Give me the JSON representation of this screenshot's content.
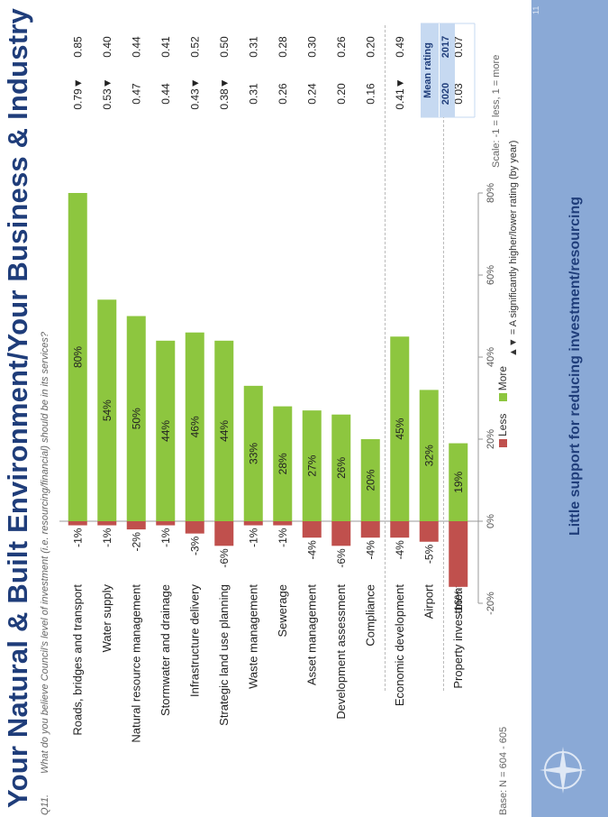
{
  "title": "Your Natural & Built Environment/Your Business & Industry",
  "question_num": "Q11.",
  "question": "What do you believe Council's level of investment (i.e. resourcing/financial) should be in its services?",
  "base": "Base: N = 604 - 605",
  "scale_note": "Scale: -1 = less, 1 = more",
  "sig_note": "▲▼ = A significantly higher/lower rating (by year)",
  "footer_message": "Little support for reducing investment/resourcing",
  "page_number": "11",
  "mean_rating": {
    "header": "Mean rating",
    "year_a": "2020",
    "year_b": "2017",
    "rows": [
      {
        "v2020": "0.79",
        "v2017": "0.85",
        "sig": "▼"
      },
      {
        "v2020": "0.53",
        "v2017": "0.40",
        "sig": "▼"
      },
      {
        "v2020": "0.47",
        "v2017": "0.44",
        "sig": ""
      },
      {
        "v2020": "0.44",
        "v2017": "0.41",
        "sig": ""
      },
      {
        "v2020": "0.43",
        "v2017": "0.52",
        "sig": "▼"
      },
      {
        "v2020": "0.38",
        "v2017": "0.50",
        "sig": "▼"
      },
      {
        "v2020": "0.31",
        "v2017": "0.31",
        "sig": ""
      },
      {
        "v2020": "0.26",
        "v2017": "0.28",
        "sig": ""
      },
      {
        "v2020": "0.24",
        "v2017": "0.30",
        "sig": ""
      },
      {
        "v2020": "0.20",
        "v2017": "0.26",
        "sig": ""
      },
      {
        "v2020": "0.16",
        "v2017": "0.20",
        "sig": ""
      },
      {
        "v2020": "0.41",
        "v2017": "0.49",
        "sig": "▼"
      },
      {
        "v2020": "0.26",
        "v2017": "0.51",
        "sig": "▼"
      },
      {
        "v2020": "0.03",
        "v2017": "0.07",
        "sig": ""
      }
    ]
  },
  "colors": {
    "less": "#c0504d",
    "more": "#8dc63f",
    "title": "#1f3d7a",
    "footer": "#8aa9d6"
  },
  "chart_data": {
    "type": "bar",
    "orientation": "vertical",
    "categories": [
      "Roads, bridges and transport",
      "Water supply",
      "Natural resource management",
      "Stormwater and drainage",
      "Infrastructure delivery",
      "Strategic land use planning",
      "Waste management",
      "Sewerage",
      "Asset management",
      "Development assessment",
      "Compliance",
      "Economic development",
      "Airport",
      "Property investment"
    ],
    "series": [
      {
        "name": "Less",
        "values": [
          -1,
          -1,
          -2,
          -1,
          -3,
          -6,
          -1,
          -1,
          -4,
          -6,
          -4,
          -4,
          -5,
          -16
        ]
      },
      {
        "name": "More",
        "values": [
          80,
          54,
          50,
          44,
          46,
          44,
          33,
          28,
          27,
          26,
          20,
          45,
          32,
          19
        ]
      }
    ],
    "value_labels": {
      "less": [
        "-1%",
        "-1%",
        "-2%",
        "-1%",
        "-3%",
        "-6%",
        "-1%",
        "-1%",
        "-4%",
        "-6%",
        "-4%",
        "-4%",
        "-5%",
        "-16%"
      ],
      "more": [
        "80%",
        "54%",
        "50%",
        "44%",
        "46%",
        "44%",
        "33%",
        "28%",
        "27%",
        "26%",
        "20%",
        "45%",
        "32%",
        "19%"
      ]
    },
    "axis_ticks": [
      "-20%",
      "0%",
      "20%",
      "40%",
      "60%",
      "80%"
    ],
    "tick_values": [
      -20,
      0,
      20,
      40,
      60,
      80
    ],
    "ylim": [
      -20,
      80
    ],
    "legend": {
      "less": "Less",
      "more": "More",
      "position": "bottom"
    },
    "grid": false
  }
}
